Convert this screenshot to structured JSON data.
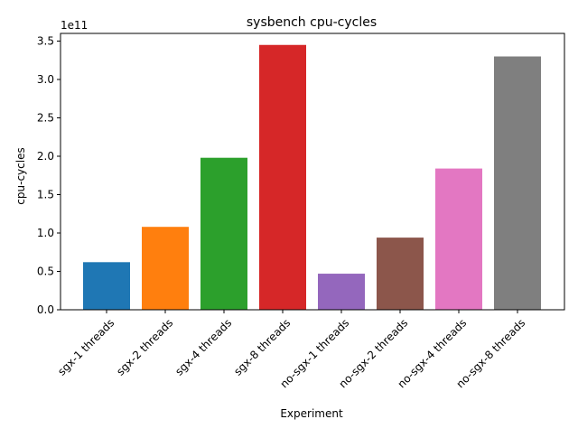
{
  "chart_data": {
    "type": "bar",
    "title": "sysbench cpu-cycles",
    "xlabel": "Experiment",
    "ylabel": "cpu-cycles",
    "y_scale_label": "1e11",
    "ylim": [
      0,
      3.6
    ],
    "yticks": [
      "0.0",
      "0.5",
      "1.0",
      "1.5",
      "2.0",
      "2.5",
      "3.0",
      "3.5"
    ],
    "categories": [
      "sgx-1 threads",
      "sgx-2 threads",
      "sgx-4 threads",
      "sgx-8 threads",
      "no-sgx-1 threads",
      "no-sgx-2 threads",
      "no-sgx-4 threads",
      "no-sgx-8 threads"
    ],
    "values": [
      0.62,
      1.08,
      1.98,
      3.45,
      0.47,
      0.94,
      1.84,
      3.3
    ],
    "colors": [
      "#1f77b4",
      "#ff7f0e",
      "#2ca02c",
      "#d62728",
      "#9467bd",
      "#8c564b",
      "#e377c2",
      "#7f7f7f"
    ],
    "grid": false,
    "legend": false
  }
}
